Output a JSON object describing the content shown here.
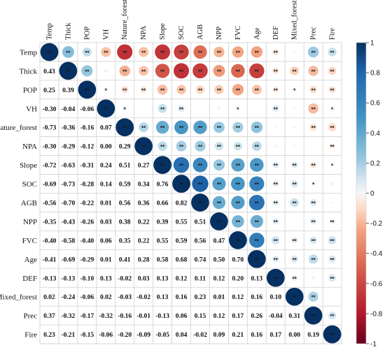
{
  "chart_data": {
    "type": "heatmap",
    "subtype": "correlation-matrix (lower: coefficients, upper: sized circles with significance stars)",
    "variables": [
      "Temp",
      "Thick",
      "POP",
      "VH",
      "Nature_forest",
      "NPA",
      "Slope",
      "SOC",
      "AGB",
      "NPP",
      "FVC",
      "Age",
      "DEF",
      "Mixed_forest",
      "Prec",
      "Fire"
    ],
    "lower_values": [
      [],
      [
        0.43
      ],
      [
        0.25,
        0.39
      ],
      [
        -0.3,
        -0.04,
        -0.06
      ],
      [
        -0.73,
        -0.36,
        -0.16,
        0.07
      ],
      [
        -0.3,
        -0.29,
        -0.12,
        0.0,
        0.29
      ],
      [
        -0.72,
        -0.63,
        -0.31,
        0.24,
        0.51,
        0.27
      ],
      [
        -0.69,
        -0.73,
        -0.28,
        0.14,
        0.59,
        0.34,
        0.76
      ],
      [
        -0.56,
        -0.7,
        -0.22,
        0.01,
        0.56,
        0.36,
        0.66,
        0.82
      ],
      [
        -0.35,
        -0.43,
        -0.26,
        0.03,
        0.38,
        0.22,
        0.39,
        0.55,
        0.51
      ],
      [
        -0.4,
        -0.58,
        -0.4,
        0.06,
        0.35,
        0.22,
        0.55,
        0.59,
        0.56,
        0.47
      ],
      [
        -0.41,
        -0.69,
        -0.29,
        0.01,
        0.41,
        0.28,
        0.58,
        0.68,
        0.74,
        0.5,
        0.7
      ],
      [
        -0.13,
        -0.13,
        -0.1,
        0.13,
        -0.02,
        0.03,
        0.13,
        0.12,
        0.11,
        0.12,
        0.2,
        0.13
      ],
      [
        0.02,
        -0.24,
        -0.06,
        0.02,
        -0.03,
        -0.02,
        0.13,
        0.16,
        0.23,
        0.01,
        0.12,
        0.16,
        0.1
      ],
      [
        0.37,
        -0.32,
        -0.17,
        -0.32,
        -0.16,
        -0.01,
        -0.13,
        0.06,
        0.15,
        0.12,
        0.17,
        0.26,
        -0.04,
        0.31
      ],
      [
        0.23,
        -0.21,
        -0.15,
        -0.06,
        -0.2,
        -0.09,
        -0.05,
        0.04,
        -0.02,
        0.09,
        0.21,
        0.16,
        0.17,
        0.0,
        0.19
      ]
    ],
    "significance_marks": [
      "**",
      "*"
    ],
    "colorbar": {
      "range": [
        -1,
        1
      ],
      "ticks": [
        "1",
        "0.8",
        "0.6",
        "0.4",
        "0.2",
        "0",
        "-0.2",
        "-0.4",
        "-0.6",
        "-0.8",
        "-1"
      ],
      "colors": {
        "neg_strong": "#67001f",
        "neg_mid": "#d6604d",
        "neutral": "#f7f7f7",
        "pos_mid": "#4393c3",
        "pos_strong": "#053061"
      }
    },
    "grid": true,
    "legend_position": "right"
  }
}
